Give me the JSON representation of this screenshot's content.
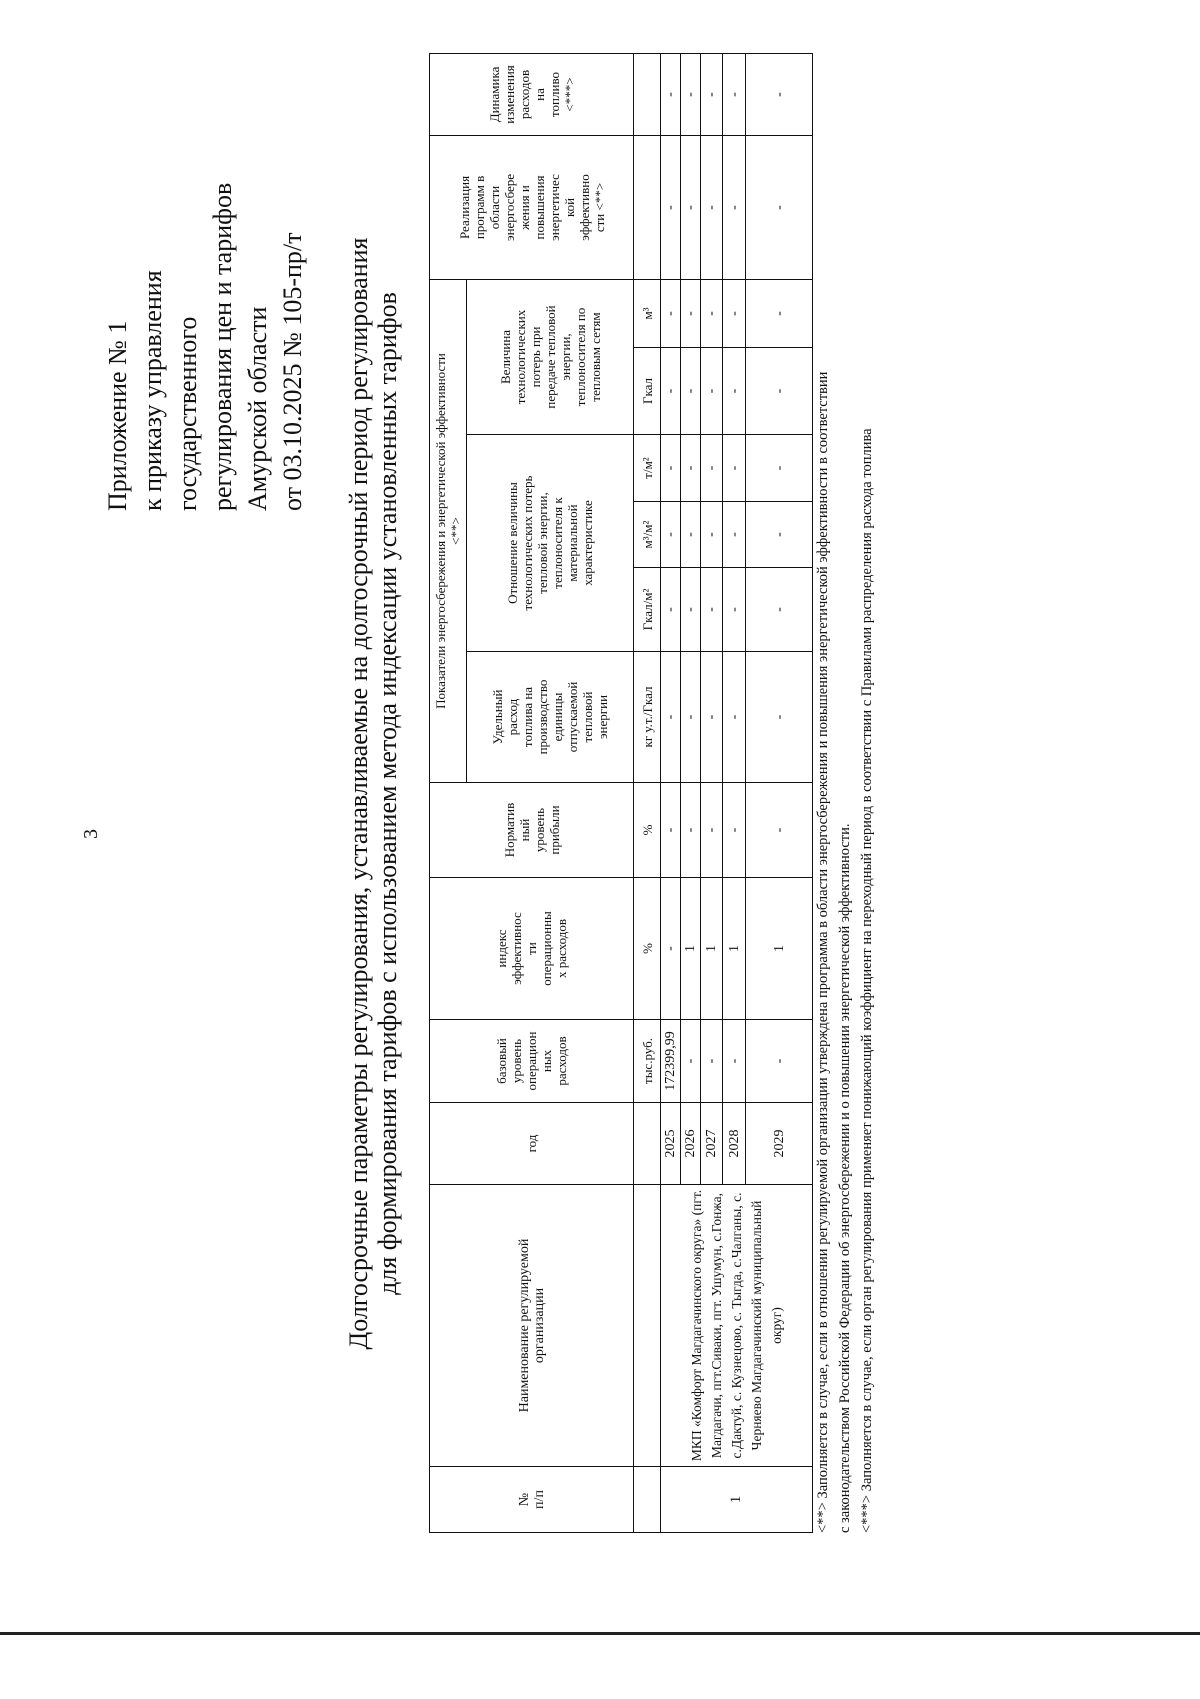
{
  "page_number": "3",
  "appendix": {
    "lines": [
      "Приложение № 1",
      "к приказу управления",
      "государственного",
      "регулирования цен и тарифов",
      "Амурской области",
      "от 03.10.2025 № 105-пр/т"
    ]
  },
  "title": {
    "line1": "Долгосрочные параметры регулирования, устанавливаемые на долгосрочный период регулирования",
    "line2": "для формирования тарифов с использованием метода индексации установленных тарифов"
  },
  "table": {
    "headers": {
      "num": "№\nп/п",
      "name": "Наименование регулируемой\nорганизации",
      "year": "год",
      "base": "базовый\nуровень\nоперацион\nных\nрасходов",
      "index": "индекс\nэффективнос\nти\nоперационны\nх расходов",
      "norm": "Норматив\nный\nуровень\nприбыли",
      "group": "Показатели энергосбережения и энергетической эффективности\n<**>",
      "udel": "Удельный\nрасход\nтоплива на\nпроизводство\nединицы\nотпускаемой\nтепловой\nэнергии",
      "otn": "Отношение величины\nтехнологических потерь\nтепловой энергии,\nтеплоносителя к\nматериальной\nхарактеристике",
      "vel": "Величина\nтехнологических\nпотерь при\nпередаче тепловой\nэнергии,\nтеплоносителя по\nтепловым сетям",
      "real": "Реализация\nпрограмм в\nобласти\nэнергосбере\nжения и\nповышения\nэнергетичес\nкой\nэффективно\nсти <**>",
      "dyn": "Динамика\nизменения\nрасходов\nна\nтопливо\n<***>"
    },
    "units": [
      "",
      "",
      "",
      "тыс.руб.",
      "%",
      "%",
      "кг у.т./Гкал",
      "Гкал/м²",
      "м³/м²",
      "т/м²",
      "Гкал",
      "м³",
      "",
      ""
    ],
    "org_number": "1",
    "org_name": "МКП «Комфорт Магдагачинского округа» (пгт. Магдагачи, пгт.Сиваки, пгт. Ушумун, с.Гонжа, с.Дактуй, с. Кузнецово, с. Тыгда, с.Чалганы, с. Черняево Магдагачинский муниципальный округ)",
    "rows": [
      {
        "year": "2025",
        "cells": [
          "172399,99",
          "-",
          "-",
          "-",
          "-",
          "-",
          "-",
          "-",
          "-",
          "-",
          "-"
        ]
      },
      {
        "year": "2026",
        "cells": [
          "-",
          "1",
          "-",
          "-",
          "-",
          "-",
          "-",
          "-",
          "-",
          "-",
          "-"
        ]
      },
      {
        "year": "2027",
        "cells": [
          "-",
          "1",
          "-",
          "-",
          "-",
          "-",
          "-",
          "-",
          "-",
          "-",
          "-"
        ]
      },
      {
        "year": "2028",
        "cells": [
          "-",
          "1",
          "-",
          "-",
          "-",
          "-",
          "-",
          "-",
          "-",
          "-",
          "-"
        ]
      },
      {
        "year": "2029",
        "cells": [
          "-",
          "1",
          "-",
          "-",
          "-",
          "-",
          "-",
          "-",
          "-",
          "-",
          "-"
        ]
      }
    ]
  },
  "footnotes": [
    "<**> Заполняется в случае, если в отношении регулируемой организации утверждена программа в области энергосбережения и повышения энергетической эффективности в соответствии",
    "с законодательством Российской Федерации об энергосбережении и о повышении энергетической эффективности.",
    "<***> Заполняется в случае, если орган регулирования применяет понижающий коэффициент на переходный период в соответствии с Правилами распределения расхода топлива"
  ]
}
